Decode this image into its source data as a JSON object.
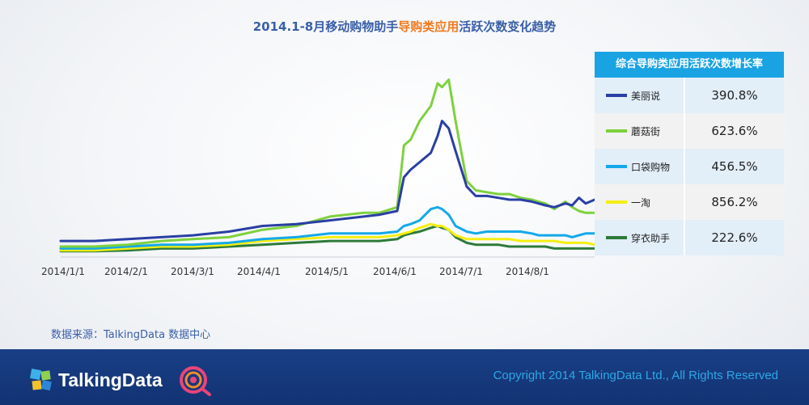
{
  "title": {
    "prefix": "2014.1-8月移动购物助手",
    "highlight": "导购类应用",
    "suffix": "活跃次数变化趋势"
  },
  "legend": {
    "header": "综合导购类应用活跃次数增长率",
    "rows": [
      {
        "name": "美丽说",
        "rate": "390.8%",
        "color": "#2a3fa3"
      },
      {
        "name": "蘑菇街",
        "rate": "623.6%",
        "color": "#7ed13e"
      },
      {
        "name": "口袋购物",
        "rate": "456.5%",
        "color": "#14a8ea"
      },
      {
        "name": "一淘",
        "rate": "856.2%",
        "color": "#f4ee13"
      },
      {
        "name": "穿衣助手",
        "rate": "222.6%",
        "color": "#2d7a3a"
      }
    ]
  },
  "source": "数据来源：TalkingData 数据中心",
  "footer": {
    "logo": "TalkingData",
    "copyright": "Copyright 2014 TalkingData Ltd., All Rights Reserved"
  },
  "colors": {
    "accent": "#f27a1f",
    "header_bg": "#1aa3e3",
    "footer_bg": "#1a3f86"
  },
  "chart_data": {
    "type": "line",
    "title": "2014.1-8月移动购物助手导购类应用活跃次数变化趋势",
    "xlabel": "",
    "ylabel": "",
    "x_tick_labels": [
      "2014/1/1",
      "2014/2/1",
      "2014/3/1",
      "2014/4/1",
      "2014/5/1",
      "2014/6/1",
      "2014/7/1",
      "2014/8/1"
    ],
    "x_days": [
      0,
      15,
      30,
      45,
      59,
      75,
      90,
      105,
      120,
      135,
      142,
      150,
      153,
      156,
      160,
      165,
      168,
      170,
      173,
      176,
      181,
      185,
      190,
      195,
      200,
      205,
      210,
      213,
      216,
      220,
      225,
      228,
      231,
      234,
      238
    ],
    "ylim": [
      0,
      100
    ],
    "series": [
      {
        "name": "美丽说",
        "color": "#2a3fa3",
        "values": [
          6,
          6,
          7,
          8,
          9,
          11,
          14,
          15,
          17,
          19,
          20,
          22,
          40,
          44,
          48,
          53,
          62,
          70,
          66,
          54,
          35,
          30,
          30,
          29,
          28,
          28,
          27,
          26,
          25,
          24,
          26,
          25,
          29,
          26,
          28
        ]
      },
      {
        "name": "蘑菇街",
        "color": "#7ed13e",
        "values": [
          3,
          3,
          4,
          6,
          7,
          8,
          12,
          14,
          19,
          21,
          21,
          24,
          57,
          60,
          70,
          78,
          90,
          88,
          92,
          70,
          38,
          33,
          32,
          31,
          31,
          29,
          28,
          27,
          26,
          23,
          27,
          24,
          22,
          21,
          21
        ]
      },
      {
        "name": "口袋购物",
        "color": "#14a8ea",
        "values": [
          2,
          2,
          3,
          4,
          4,
          5,
          7,
          8,
          10,
          10,
          10,
          11,
          14,
          15,
          17,
          23,
          24,
          23,
          20,
          14,
          11,
          10,
          11,
          11,
          11,
          11,
          10,
          9,
          9,
          9,
          9,
          8,
          9,
          10,
          10
        ]
      },
      {
        "name": "一淘",
        "color": "#f4ee13",
        "values": [
          1,
          1,
          2,
          3,
          3,
          4,
          6,
          7,
          8,
          8,
          8,
          9,
          10,
          11,
          13,
          15,
          14,
          14,
          12,
          9,
          7,
          7,
          7,
          7,
          7,
          6,
          6,
          6,
          6,
          6,
          5,
          5,
          5,
          5,
          4
        ]
      },
      {
        "name": "穿衣助手",
        "color": "#2d7a3a",
        "values": [
          0.5,
          0.5,
          1,
          2,
          2,
          3,
          4,
          5,
          6,
          6,
          6,
          7,
          9,
          10,
          11,
          13,
          14,
          13,
          12,
          8,
          5,
          4,
          4,
          4,
          3,
          3,
          3,
          3,
          3,
          2,
          2,
          2,
          2,
          2,
          2
        ]
      }
    ]
  }
}
